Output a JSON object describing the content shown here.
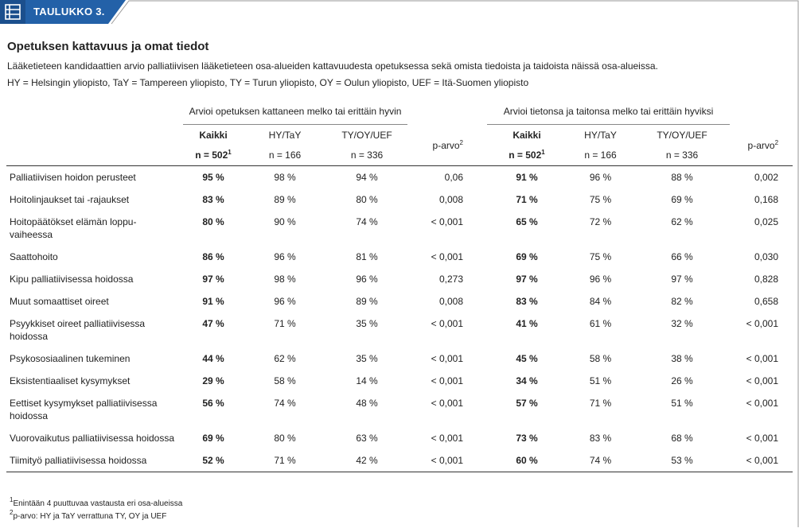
{
  "badge": "TAULUKKO 3.",
  "title": "Opetuksen kattavuus ja omat tiedot",
  "description": "Lääketieteen kandidaattien arvio palliatiivisen lääketieteen osa-alueiden kattavuudesta opetuksessa sekä omista tiedoista ja taidoista näissä osa-alueissa.",
  "abbreviations": "HY = Helsingin yliopisto, TaY = Tampereen yliopisto, TY = Turun yliopisto, OY = Oulun yliopisto, UEF = Itä-Suomen yliopisto",
  "table": {
    "groups": [
      "Arvioi opetuksen kattaneen melko tai erittäin hyvin",
      "Arvioi tietonsa ja taitonsa melko tai erittäin hyviksi"
    ],
    "columns": [
      {
        "label": "Kaikki",
        "n": "n = 502",
        "sup": "1"
      },
      {
        "label": "HY/TaY",
        "n": "n = 166"
      },
      {
        "label": "TY/OY/UEF",
        "n": "n = 336"
      },
      {
        "label": "p-arvo",
        "sup": "2"
      }
    ],
    "rows": [
      [
        "Palliatiivisen hoidon perusteet",
        "95 %",
        "98 %",
        "94 %",
        "0,06",
        "91 %",
        "96 %",
        "88 %",
        "0,002"
      ],
      [
        "Hoitolinjaukset tai -rajaukset",
        "83 %",
        "89 %",
        "80 %",
        "0,008",
        "71 %",
        "75 %",
        "69 %",
        "0,168"
      ],
      [
        "Hoitopäätökset elämän loppu- vaiheessa",
        "80 %",
        "90 %",
        "74 %",
        "< 0,001",
        "65 %",
        "72 %",
        "62 %",
        "0,025"
      ],
      [
        "Saattohoito",
        "86 %",
        "96 %",
        "81 %",
        "< 0,001",
        "69 %",
        "75 %",
        "66 %",
        "0,030"
      ],
      [
        "Kipu palliatiivisessa hoidossa",
        "97 %",
        "98 %",
        "96 %",
        "0,273",
        "97 %",
        "96 %",
        "97 %",
        "0,828"
      ],
      [
        "Muut somaattiset oireet",
        "91 %",
        "96 %",
        "89 %",
        "0,008",
        "83 %",
        "84 %",
        "82 %",
        "0,658"
      ],
      [
        "Psyykkiset oireet palliatiivisessa hoidossa",
        "47 %",
        "71 %",
        "35 %",
        "< 0,001",
        "41 %",
        "61 %",
        "32 %",
        "< 0,001"
      ],
      [
        "Psykososiaalinen tukeminen",
        "44 %",
        "62 %",
        "35 %",
        "< 0,001",
        "45 %",
        "58 %",
        "38 %",
        "< 0,001"
      ],
      [
        "Eksistentiaaliset kysymykset",
        "29 %",
        "58 %",
        "14 %",
        "< 0,001",
        "34 %",
        "51 %",
        "26 %",
        "< 0,001"
      ],
      [
        "Eettiset kysymykset palliatiivisessa hoidossa",
        "56 %",
        "74 %",
        "48 %",
        "< 0,001",
        "57 %",
        "71 %",
        "51 %",
        "< 0,001"
      ],
      [
        "Vuorovaikutus palliatiivisessa hoidossa",
        "69 %",
        "80 %",
        "63 %",
        "< 0,001",
        "73 %",
        "83 %",
        "68 %",
        "< 0,001"
      ],
      [
        "Tiimityö palliatiivisessa hoidossa",
        "52 %",
        "71 %",
        "42 %",
        "< 0,001",
        "60 %",
        "74 %",
        "53 %",
        "< 0,001"
      ]
    ]
  },
  "footnotes": [
    {
      "marker": "1",
      "text": "Enintään 4 puuttuvaa vastausta eri osa-alueissa"
    },
    {
      "marker": "2",
      "text": "p-arvo: HY ja TaY verrattuna TY, OY ja UEF"
    }
  ]
}
